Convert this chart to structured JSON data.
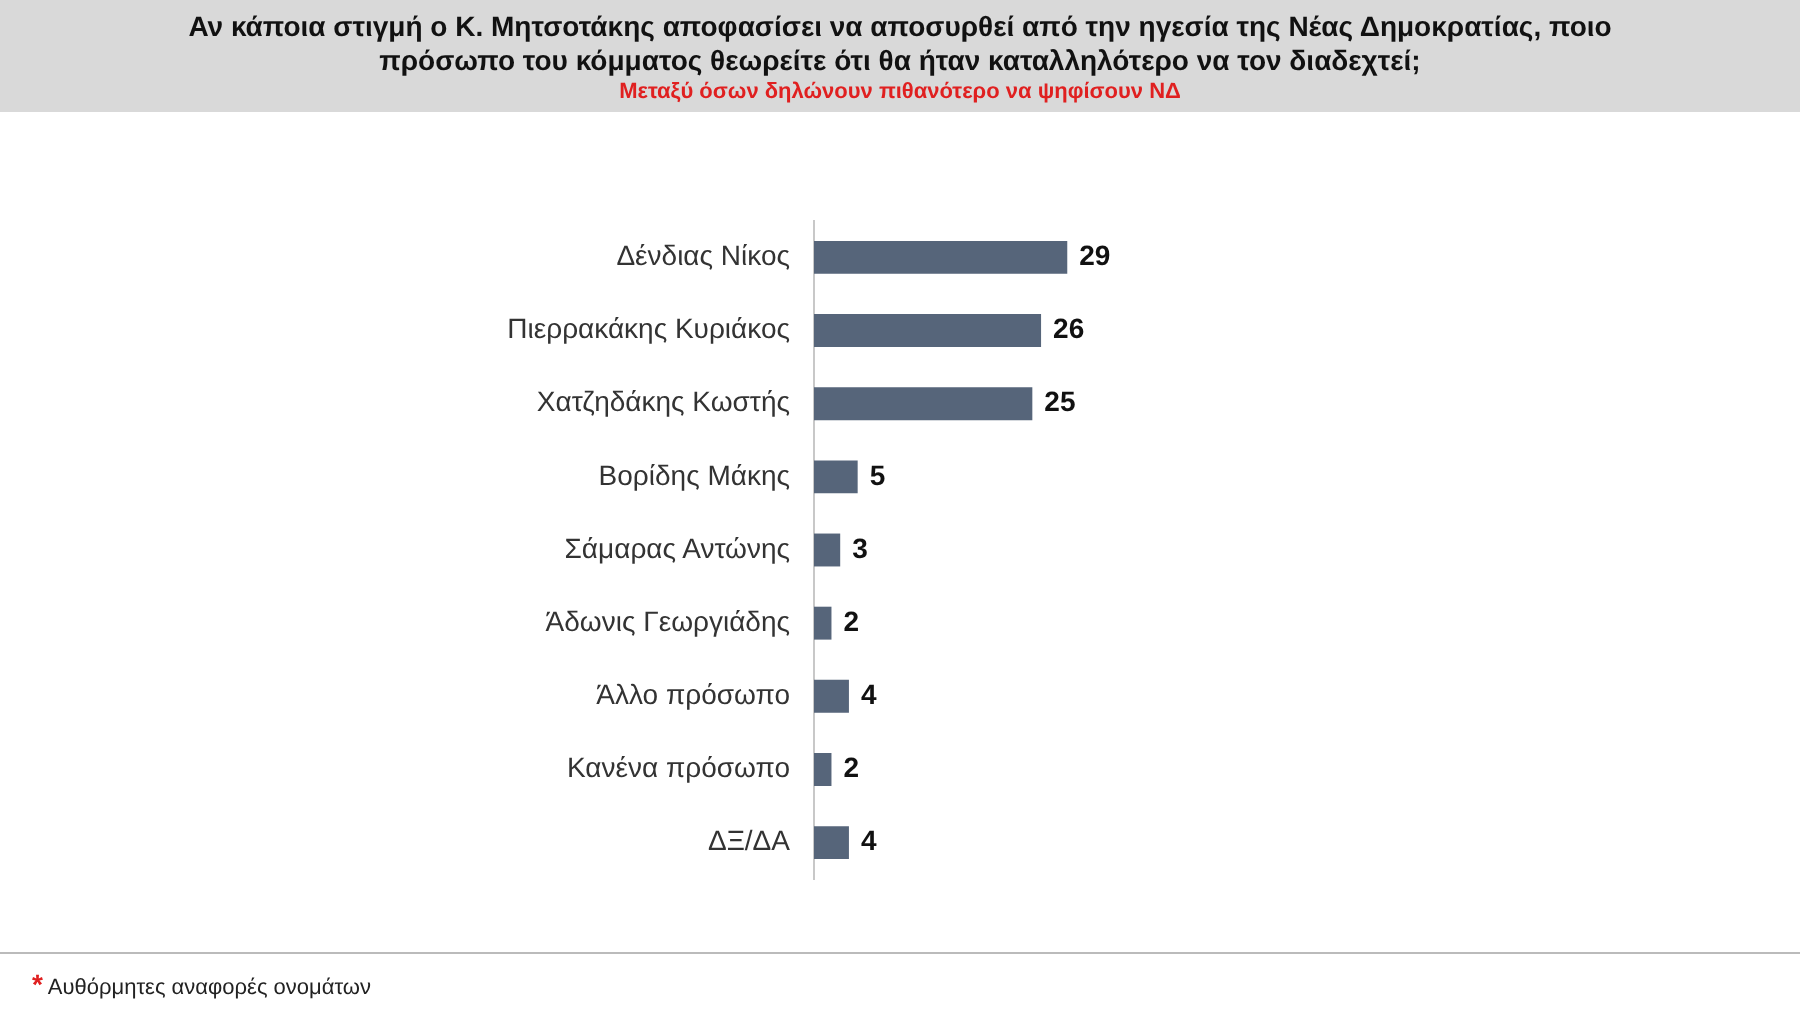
{
  "chart_data": {
    "type": "bar",
    "orientation": "horizontal",
    "title": "Αν κάποια στιγμή ο Κ. Μητσοτάκης αποφασίσει να αποσυρθεί από την ηγεσία της Νέας Δημοκρατίας, ποιο πρόσωπο του κόμματος θεωρείτε ότι θα ήταν καταλληλότερο να τον διαδεχτεί;",
    "subtitle": "Μεταξύ όσων δηλώνουν πιθανότερο να ψηφίσουν ΝΔ",
    "categories": [
      "Δένδιας Νίκος",
      "Πιερρακάκης Κυριάκος",
      "Χατζηδάκης Κωστής",
      "Βορίδης Μάκης",
      "Σάμαρας Αντώνης",
      "Άδωνις Γεωργιάδης",
      "Άλλο πρόσωπο",
      "Κανένα πρόσωπο",
      "ΔΞ/ΔΑ"
    ],
    "values": [
      29,
      26,
      25,
      5,
      3,
      2,
      4,
      2,
      4
    ],
    "color": "#56657a",
    "data_labels": true,
    "grid": false,
    "legend": false,
    "annotations": [
      "* Αυθόρμητες αναφορές ονομάτων"
    ]
  }
}
